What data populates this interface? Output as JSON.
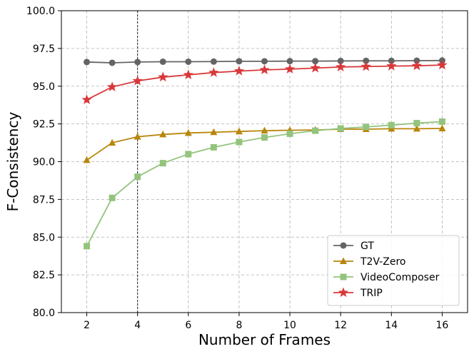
{
  "chart_data": {
    "type": "line",
    "title": "",
    "xlabel": "Number of Frames",
    "ylabel": "F-Consistency",
    "xlim": [
      1,
      17
    ],
    "ylim": [
      80.0,
      100.0
    ],
    "xticks": [
      2,
      4,
      6,
      8,
      10,
      12,
      14,
      16
    ],
    "yticks": [
      80.0,
      82.5,
      85.0,
      87.5,
      90.0,
      92.5,
      95.0,
      97.5,
      100.0
    ],
    "ytick_labels": [
      "80.0",
      "82.5",
      "85.0",
      "87.5",
      "90.0",
      "92.5",
      "95.0",
      "97.5",
      "100.0"
    ],
    "grid": true,
    "vline_x": 4,
    "legend_position": "bottom-right",
    "x": [
      2,
      3,
      4,
      5,
      6,
      7,
      8,
      9,
      10,
      11,
      12,
      13,
      14,
      15,
      16
    ],
    "series": [
      {
        "name": "GT",
        "marker": "circle",
        "color": "#646464",
        "values": [
          96.6,
          96.55,
          96.6,
          96.62,
          96.62,
          96.63,
          96.65,
          96.65,
          96.66,
          96.66,
          96.67,
          96.68,
          96.68,
          96.69,
          96.7
        ]
      },
      {
        "name": "T2V-Zero",
        "marker": "triangle",
        "color": "#b8860b",
        "values": [
          90.1,
          91.25,
          91.65,
          91.8,
          91.9,
          91.95,
          92.0,
          92.05,
          92.08,
          92.1,
          92.15,
          92.15,
          92.18,
          92.18,
          92.2
        ]
      },
      {
        "name": "VideoComposer",
        "marker": "square",
        "color": "#93c47d",
        "values": [
          84.4,
          87.6,
          89.0,
          89.9,
          90.5,
          90.95,
          91.3,
          91.6,
          91.85,
          92.05,
          92.2,
          92.3,
          92.42,
          92.55,
          92.65
        ]
      },
      {
        "name": "TRIP",
        "marker": "star",
        "color": "#d9383a",
        "values": [
          94.1,
          94.95,
          95.35,
          95.6,
          95.75,
          95.9,
          96.0,
          96.08,
          96.13,
          96.2,
          96.27,
          96.3,
          96.33,
          96.35,
          96.4
        ]
      }
    ]
  }
}
